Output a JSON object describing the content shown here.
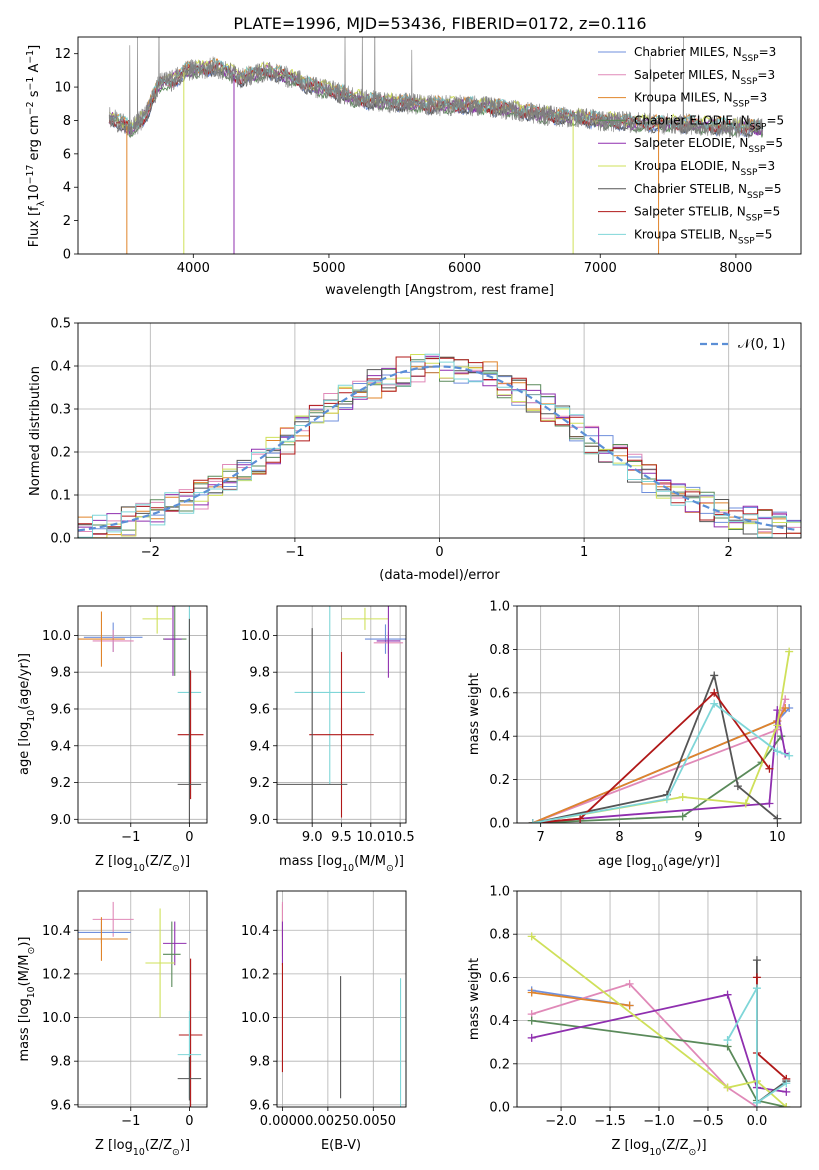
{
  "figure_title": "PLATE=1996, MJD=53436, FIBERID=0172, z=0.116",
  "colors": {
    "chabrier_miles": "#6f8fdc",
    "salpeter_miles": "#e089b8",
    "kroupa_miles": "#e0842a",
    "chabrier_elodie": "#5a8a5a",
    "salpeter_elodie": "#8f2faf",
    "kroupa_elodie": "#cfe05a",
    "chabrier_stelib": "#555555",
    "salpeter_stelib": "#b01818",
    "kroupa_stelib": "#7fd6d8",
    "normal": "#5b8fd6",
    "data": "#808080"
  },
  "chart_data": [
    {
      "id": "spectrum",
      "type": "line",
      "xlabel": "wavelength [Angstrom, rest frame]",
      "ylabel": "Flux [f",
      "ylabel_sub": "λ",
      "ylabel_mid": "10",
      "ylabel_exp": "−17",
      "ylabel_tail": " erg cm",
      "ylabel_exp2": "−2",
      "ylabel_tail2": " s",
      "ylabel_exp3": "−1",
      "ylabel_tail3": " A",
      "ylabel_exp4": "−1",
      "ylabel_end": "]",
      "xlim": [
        3150,
        8480
      ],
      "ylim": [
        0,
        13
      ],
      "xticks": [
        4000,
        5000,
        6000,
        7000,
        8000
      ],
      "yticks": [
        0,
        2,
        4,
        6,
        8,
        10,
        12
      ],
      "grid": false,
      "legend_position": "top-right",
      "legend": [
        {
          "prefix": "Chabrier MILES, N",
          "sub": "SSP",
          "suffix": "=3",
          "color_key": "chabrier_miles"
        },
        {
          "prefix": "Salpeter MILES, N",
          "sub": "SSP",
          "suffix": "=3",
          "color_key": "salpeter_miles"
        },
        {
          "prefix": "Kroupa MILES, N",
          "sub": "SSP",
          "suffix": "=3",
          "color_key": "kroupa_miles"
        },
        {
          "prefix": "Chabrier ELODIE, N",
          "sub": "SSP",
          "suffix": "=5",
          "color_key": "chabrier_elodie"
        },
        {
          "prefix": "Salpeter ELODIE, N",
          "sub": "SSP",
          "suffix": "=5",
          "color_key": "salpeter_elodie"
        },
        {
          "prefix": "Kroupa ELODIE, N",
          "sub": "SSP",
          "suffix": "=3",
          "color_key": "kroupa_elodie"
        },
        {
          "prefix": "Chabrier STELIB, N",
          "sub": "SSP",
          "suffix": "=5",
          "color_key": "chabrier_stelib"
        },
        {
          "prefix": "Salpeter STELIB, N",
          "sub": "SSP",
          "suffix": "=5",
          "color_key": "salpeter_stelib"
        },
        {
          "prefix": "Kroupa STELIB, N",
          "sub": "SSP",
          "suffix": "=5",
          "color_key": "kroupa_stelib"
        }
      ],
      "continuum_x": [
        3380,
        3450,
        3550,
        3650,
        3750,
        3850,
        3950,
        4050,
        4150,
        4250,
        4350,
        4450,
        4550,
        4650,
        4750,
        4850,
        4950,
        5050,
        5200,
        5400,
        5600,
        5800,
        6000,
        6200,
        6400,
        6600,
        6800,
        7000,
        7200,
        7400,
        7600,
        7800,
        8000,
        8200
      ],
      "continuum_y": [
        8.2,
        7.9,
        7.5,
        8.3,
        10.2,
        10.4,
        11.0,
        11.1,
        11.2,
        11.0,
        10.5,
        10.8,
        11.0,
        10.7,
        10.5,
        10.1,
        9.9,
        9.7,
        9.3,
        9.1,
        9.0,
        8.9,
        8.9,
        8.8,
        8.6,
        8.3,
        8.2,
        8.0,
        7.9,
        7.8,
        7.8,
        7.7,
        7.6,
        7.5
      ],
      "drops": [
        {
          "x": 3510,
          "series": "kroupa_miles"
        },
        {
          "x": 3930,
          "series": "kroupa_elodie"
        },
        {
          "x": 4300,
          "series": "salpeter_elodie"
        },
        {
          "x": 6800,
          "series": "kroupa_elodie"
        },
        {
          "x": 7430,
          "series": "kroupa_miles"
        }
      ]
    },
    {
      "id": "residuals",
      "type": "bar",
      "xlabel": "(data-model)/error",
      "ylabel": "Normed distribution",
      "xlim": [
        -2.5,
        2.5
      ],
      "ylim": [
        0,
        0.5
      ],
      "xticks": [
        -2,
        -1,
        0,
        1,
        2
      ],
      "xtick_labels": [
        "−2",
        "−1",
        "0",
        "1",
        "2"
      ],
      "yticks": [
        0.0,
        0.1,
        0.2,
        0.3,
        0.4,
        0.5
      ],
      "ytick_labels": [
        "0.0",
        "0.1",
        "0.2",
        "0.3",
        "0.4",
        "0.5"
      ],
      "grid": true,
      "legend_position": "top-right",
      "legend_label": "𝒩(0, 1)",
      "bin_width": 0.1
    },
    {
      "id": "age_vs_Z",
      "type": "scatter",
      "xlabel": "Z [log",
      "xlabel_sub": "10",
      "xlabel_tail": "(Z/Z",
      "xlabel_sub2": "⊙",
      "xlabel_end": ")]",
      "ylabel": "age  [log",
      "ylabel_sub": "10",
      "ylabel_tail": "(age/yr)]",
      "xlim": [
        -1.9,
        0.3
      ],
      "ylim": [
        8.98,
        10.16
      ],
      "xticks": [
        -1,
        0
      ],
      "xtick_labels": [
        "−1",
        "0"
      ],
      "yticks": [
        9.0,
        9.2,
        9.4,
        9.6,
        9.8,
        10.0
      ],
      "ytick_labels": [
        "9.0",
        "9.2",
        "9.4",
        "9.6",
        "9.8",
        "10.0"
      ],
      "grid": true,
      "points": [
        {
          "s": "chabrier_miles",
          "x": -1.3,
          "y": 9.99,
          "xerr": 0.5,
          "yerr": 0.08
        },
        {
          "s": "salpeter_miles",
          "x": -1.3,
          "y": 9.97,
          "xerr": 0.35,
          "yerr": 0.06
        },
        {
          "s": "kroupa_miles",
          "x": -1.5,
          "y": 9.98,
          "xerr": 0.4,
          "yerr": 0.15
        },
        {
          "s": "kroupa_elodie",
          "x": -0.55,
          "y": 10.09,
          "xerr": 0.25,
          "yerr": 0.08
        },
        {
          "s": "chabrier_elodie",
          "x": -0.25,
          "y": 9.98,
          "xerr": 0.2,
          "yerr": 0.2
        },
        {
          "s": "salpeter_elodie",
          "x": -0.28,
          "y": 9.98,
          "xerr": 0.15,
          "yerr": 0.2
        },
        {
          "s": "kroupa_stelib",
          "x": 0.0,
          "y": 9.69,
          "xerr": 0.2,
          "yerr": 0.5
        },
        {
          "s": "salpeter_stelib",
          "x": 0.02,
          "y": 9.46,
          "xerr": 0.22,
          "yerr": 0.35
        },
        {
          "s": "chabrier_stelib",
          "x": 0.0,
          "y": 9.19,
          "xerr": 0.2,
          "yerr": 0.9
        }
      ]
    },
    {
      "id": "age_vs_mass",
      "type": "scatter",
      "xlabel": "mass [log",
      "xlabel_sub": "10",
      "xlabel_tail": "(M/M",
      "xlabel_sub2": "⊙",
      "xlabel_end": ")]",
      "xlim": [
        8.4,
        10.6
      ],
      "ylim": [
        8.98,
        10.16
      ],
      "xticks": [
        9.0,
        9.5,
        10.0,
        10.5
      ],
      "xtick_labels": [
        "",
        "",
        "10.0",
        "10.5"
      ],
      "xtick_labels_visible": [
        "9.0",
        "9.5"
      ],
      "yticks": [
        9.0,
        9.2,
        9.4,
        9.6,
        9.8,
        10.0
      ],
      "ytick_labels": [
        "9.0",
        "9.2",
        "9.4",
        "9.6",
        "9.8",
        "10.0"
      ],
      "grid": true,
      "points": [
        {
          "s": "kroupa_elodie",
          "x": 9.9,
          "y": 10.09,
          "xerr": 0.4,
          "yerr": 0.06
        },
        {
          "s": "chabrier_miles",
          "x": 10.25,
          "y": 9.98,
          "xerr": 0.35,
          "yerr": 0.08
        },
        {
          "s": "salpeter_miles",
          "x": 10.3,
          "y": 9.96,
          "xerr": 0.25,
          "yerr": 0.06
        },
        {
          "s": "salpeter_elodie",
          "x": 10.3,
          "y": 9.97,
          "xerr": 0.2,
          "yerr": 0.2
        },
        {
          "s": "kroupa_stelib",
          "x": 9.3,
          "y": 9.69,
          "xerr": 0.6,
          "yerr": 0.5
        },
        {
          "s": "salpeter_stelib",
          "x": 9.5,
          "y": 9.46,
          "xerr": 0.55,
          "yerr": 0.45
        },
        {
          "s": "chabrier_stelib",
          "x": 9.0,
          "y": 9.19,
          "xerr": 0.6,
          "yerr": 0.85
        }
      ]
    },
    {
      "id": "weight_vs_age",
      "type": "line",
      "xlabel": "age  [log",
      "xlabel_sub": "10",
      "xlabel_tail": "(age/yr)]",
      "ylabel": "mass weight",
      "xlim": [
        6.7,
        10.3
      ],
      "ylim": [
        0,
        1.0
      ],
      "xticks": [
        7,
        8,
        9,
        10
      ],
      "xtick_labels": [
        "7",
        "8",
        "9",
        "10"
      ],
      "yticks": [
        0.0,
        0.2,
        0.4,
        0.6,
        0.8,
        1.0
      ],
      "ytick_labels": [
        "0.0",
        "0.2",
        "0.4",
        "0.6",
        "0.8",
        "1.0"
      ],
      "grid": true,
      "series": [
        {
          "s": "chabrier_miles",
          "x": [
            6.9,
            10.0,
            10.15
          ],
          "y": [
            0.0,
            0.47,
            0.53
          ]
        },
        {
          "s": "salpeter_miles",
          "x": [
            6.9,
            10.0,
            10.1
          ],
          "y": [
            0.0,
            0.43,
            0.57
          ]
        },
        {
          "s": "kroupa_miles",
          "x": [
            6.9,
            10.0,
            10.1
          ],
          "y": [
            0.0,
            0.47,
            0.53
          ]
        },
        {
          "s": "chabrier_elodie",
          "x": [
            6.9,
            8.8,
            9.8,
            10.05
          ],
          "y": [
            0.0,
            0.03,
            0.28,
            0.4
          ]
        },
        {
          "s": "salpeter_elodie",
          "x": [
            6.9,
            7.5,
            9.9,
            10.0,
            10.1
          ],
          "y": [
            0.0,
            0.02,
            0.09,
            0.52,
            0.32
          ]
        },
        {
          "s": "kroupa_elodie",
          "x": [
            6.9,
            8.8,
            9.6,
            10.0,
            10.15
          ],
          "y": [
            0.0,
            0.12,
            0.09,
            0.45,
            0.79
          ]
        },
        {
          "s": "chabrier_stelib",
          "x": [
            6.9,
            8.6,
            9.2,
            9.5,
            10.0
          ],
          "y": [
            0.0,
            0.13,
            0.68,
            0.17,
            0.02
          ]
        },
        {
          "s": "salpeter_stelib",
          "x": [
            6.9,
            7.5,
            9.2,
            9.9
          ],
          "y": [
            0.0,
            0.02,
            0.6,
            0.25
          ]
        },
        {
          "s": "kroupa_stelib",
          "x": [
            6.9,
            8.6,
            9.2,
            10.0,
            10.15
          ],
          "y": [
            0.0,
            0.11,
            0.55,
            0.33,
            0.31
          ]
        }
      ]
    },
    {
      "id": "mass_vs_Z",
      "type": "scatter",
      "xlabel": "Z [log",
      "xlabel_sub": "10",
      "xlabel_tail": "(Z/Z",
      "xlabel_sub2": "⊙",
      "xlabel_end": ")]",
      "ylabel": "mass [log",
      "ylabel_sub": "10",
      "ylabel_tail": "(M/M",
      "ylabel_sub2": "⊙",
      "ylabel_end": ")]",
      "xlim": [
        -1.9,
        0.3
      ],
      "ylim": [
        9.59,
        10.58
      ],
      "xticks": [
        -1,
        0
      ],
      "xtick_labels": [
        "−1",
        "0"
      ],
      "yticks": [
        9.6,
        9.8,
        10.0,
        10.2,
        10.4
      ],
      "ytick_labels": [
        "9.6",
        "9.8",
        "10.0",
        "10.2",
        "10.4"
      ],
      "grid": true,
      "points": [
        {
          "s": "salpeter_miles",
          "x": -1.3,
          "y": 10.45,
          "xerr": 0.35,
          "yerr": 0.08
        },
        {
          "s": "chabrier_miles",
          "x": -1.5,
          "y": 10.39,
          "xerr": 0.5,
          "yerr": 0.05
        },
        {
          "s": "kroupa_miles",
          "x": -1.5,
          "y": 10.36,
          "xerr": 0.45,
          "yerr": 0.1
        },
        {
          "s": "salpeter_elodie",
          "x": -0.25,
          "y": 10.34,
          "xerr": 0.2,
          "yerr": 0.1
        },
        {
          "s": "chabrier_elodie",
          "x": -0.3,
          "y": 10.29,
          "xerr": 0.15,
          "yerr": 0.15
        },
        {
          "s": "kroupa_elodie",
          "x": -0.5,
          "y": 10.25,
          "xerr": 0.25,
          "yerr": 0.25
        },
        {
          "s": "salpeter_stelib",
          "x": 0.02,
          "y": 9.92,
          "xerr": 0.2,
          "yerr": 0.35
        },
        {
          "s": "kroupa_stelib",
          "x": 0.0,
          "y": 9.83,
          "xerr": 0.2,
          "yerr": 0.2
        },
        {
          "s": "chabrier_stelib",
          "x": 0.0,
          "y": 9.72,
          "xerr": 0.2,
          "yerr": 0.1
        }
      ]
    },
    {
      "id": "mass_vs_ebv",
      "type": "scatter",
      "xlabel": "E(B-V)",
      "xlim": [
        -0.0003,
        0.0068
      ],
      "ylim": [
        9.59,
        10.58
      ],
      "xticks": [
        0.0,
        0.0025,
        0.005
      ],
      "xtick_labels": [
        "0.0000",
        "0.0025",
        "0.0050"
      ],
      "yticks": [
        9.6,
        9.8,
        10.0,
        10.2,
        10.4
      ],
      "ytick_labels": [
        "9.6",
        "9.8",
        "10.0",
        "10.2",
        "10.4"
      ],
      "grid": true,
      "points": [
        {
          "s": "kroupa_elodie",
          "x": 0.0,
          "y": 10.4,
          "xerr": 0.0,
          "yerr": 0.12
        },
        {
          "s": "salpeter_miles",
          "x": 0.0,
          "y": 10.45,
          "xerr": 0.0,
          "yerr": 0.08
        },
        {
          "s": "salpeter_elodie",
          "x": 0.0,
          "y": 10.34,
          "xerr": 0.0,
          "yerr": 0.1
        },
        {
          "s": "salpeter_stelib",
          "x": 0.0,
          "y": 10.0,
          "xerr": 0.0,
          "yerr": 0.25
        },
        {
          "s": "chabrier_stelib",
          "x": 0.0032,
          "y": 9.91,
          "xerr": 0.0,
          "yerr": 0.28
        },
        {
          "s": "kroupa_stelib",
          "x": 0.0065,
          "y": 9.83,
          "xerr": 0.0,
          "yerr": 0.35
        }
      ]
    },
    {
      "id": "weight_vs_Z",
      "type": "line",
      "xlabel": "Z [log",
      "xlabel_sub": "10",
      "xlabel_tail": "(Z/Z",
      "xlabel_sub2": "⊙",
      "xlabel_end": ")]",
      "ylabel": "mass weight",
      "xlim": [
        -2.45,
        0.45
      ],
      "ylim": [
        0,
        1.0
      ],
      "xticks": [
        -2.0,
        -1.5,
        -1.0,
        -0.5,
        0.0
      ],
      "xtick_labels": [
        "−2.0",
        "−1.5",
        "−1.0",
        "−0.5",
        "0.0"
      ],
      "yticks": [
        0.0,
        0.2,
        0.4,
        0.6,
        0.8,
        1.0
      ],
      "ytick_labels": [
        "0.0",
        "0.2",
        "0.4",
        "0.6",
        "0.8",
        "1.0"
      ],
      "grid": true,
      "series": [
        {
          "s": "chabrier_miles",
          "x": [
            -2.3,
            -1.3
          ],
          "y": [
            0.54,
            0.47
          ]
        },
        {
          "s": "salpeter_miles",
          "x": [
            -2.3,
            -1.3,
            -0.3,
            0.0
          ],
          "y": [
            0.43,
            0.57,
            0.09,
            0.0
          ]
        },
        {
          "s": "kroupa_miles",
          "x": [
            -2.3,
            -1.3
          ],
          "y": [
            0.53,
            0.47
          ]
        },
        {
          "s": "chabrier_elodie",
          "x": [
            -2.3,
            -0.3,
            0.0,
            0.3
          ],
          "y": [
            0.4,
            0.28,
            0.03,
            0.0
          ]
        },
        {
          "s": "salpeter_elodie",
          "x": [
            -2.3,
            -0.3,
            0.0,
            0.3
          ],
          "y": [
            0.32,
            0.52,
            0.09,
            0.07
          ]
        },
        {
          "s": "kroupa_elodie",
          "x": [
            -2.3,
            -0.3,
            0.0,
            0.3
          ],
          "y": [
            0.79,
            0.09,
            0.12,
            0.0
          ]
        },
        {
          "s": "chabrier_stelib",
          "x": [
            0.0,
            0.0,
            0.3
          ],
          "y": [
            0.68,
            0.02,
            0.12
          ]
        },
        {
          "s": "salpeter_stelib",
          "x": [
            0.0,
            0.0,
            0.3
          ],
          "y": [
            0.6,
            0.25,
            0.13
          ]
        },
        {
          "s": "kroupa_stelib",
          "x": [
            -0.3,
            0.0,
            0.0,
            0.3
          ],
          "y": [
            0.31,
            0.55,
            0.02,
            0.11
          ]
        }
      ]
    }
  ]
}
